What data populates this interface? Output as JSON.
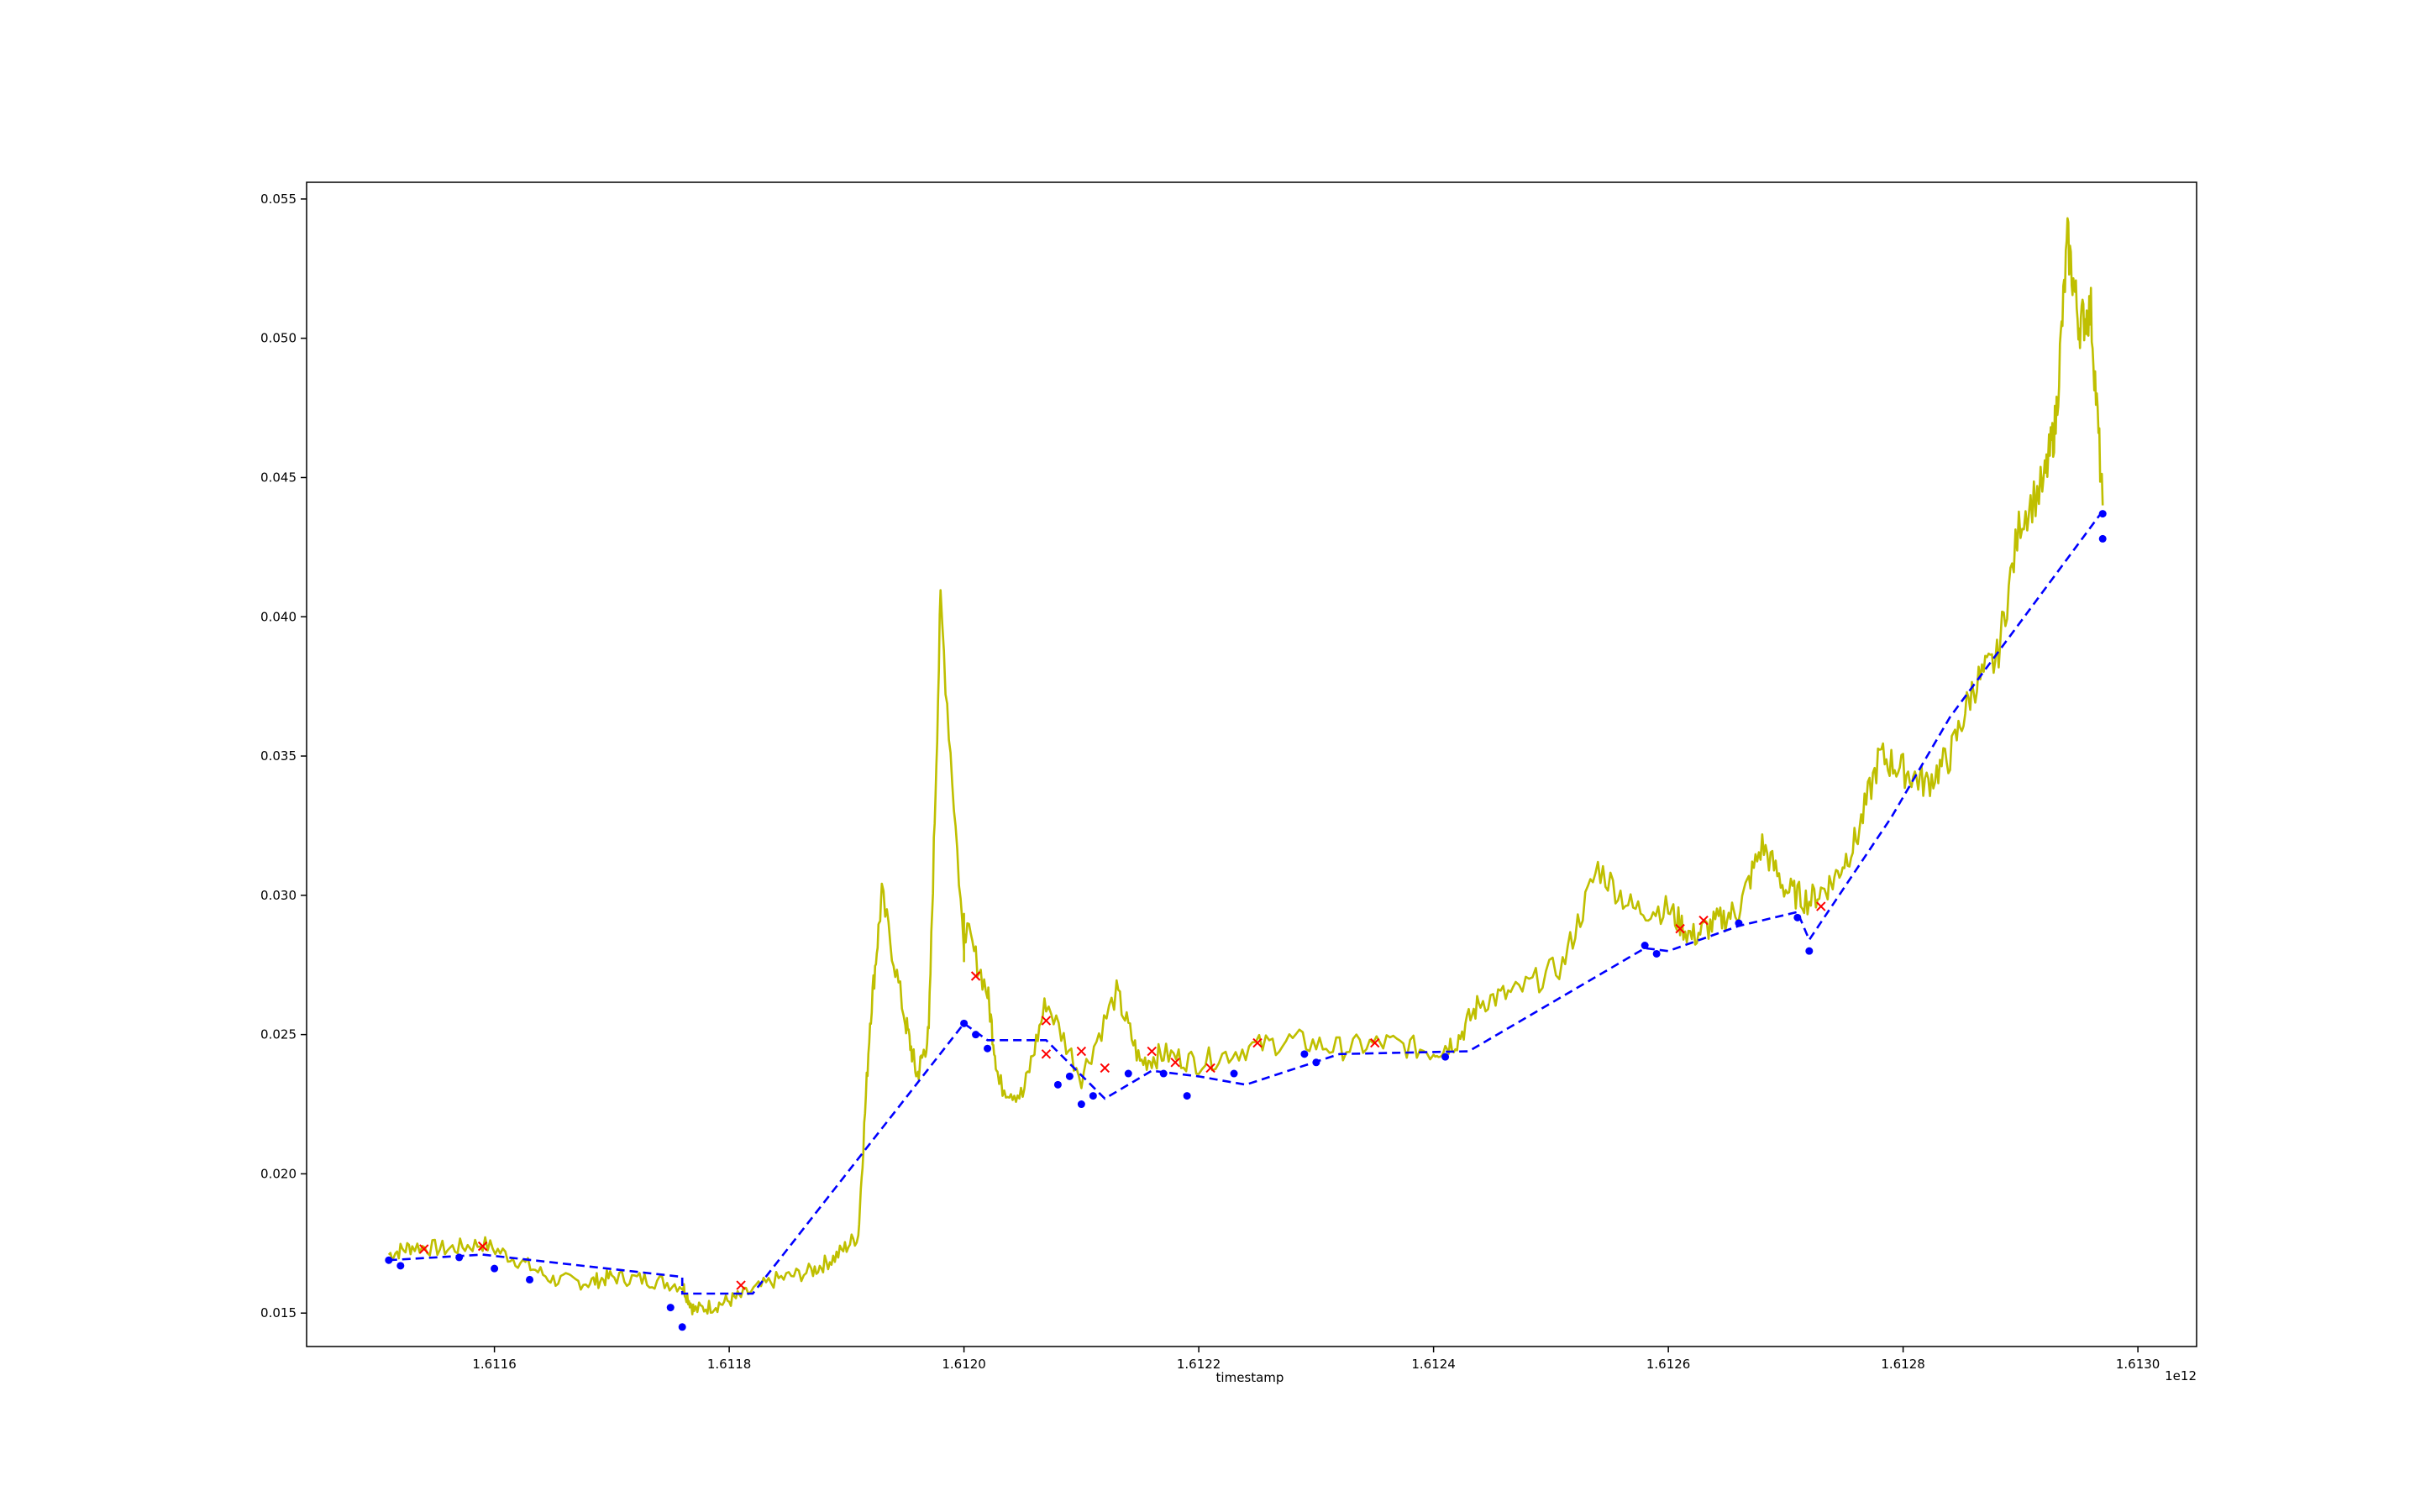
{
  "chart_data": {
    "type": "line",
    "xlabel": "timestamp",
    "ylabel": "",
    "title": "",
    "x_offset_label": "1e12",
    "xlim": [
      1.61144,
      1.61305
    ],
    "ylim": [
      0.0138,
      0.0556
    ],
    "x_ticks": [
      1.6116,
      1.6118,
      1.612,
      1.6122,
      1.6124,
      1.6126,
      1.6128,
      1.613
    ],
    "x_tick_labels": [
      "1.6116",
      "1.6118",
      "1.6120",
      "1.6122",
      "1.6124",
      "1.6126",
      "1.6128",
      "1.6130"
    ],
    "y_ticks": [
      0.015,
      0.02,
      0.025,
      0.03,
      0.035,
      0.04,
      0.045,
      0.05,
      0.055
    ],
    "y_tick_labels": [
      "0.015",
      "0.020",
      "0.025",
      "0.030",
      "0.035",
      "0.040",
      "0.045",
      "0.050",
      "0.055"
    ],
    "grid": false,
    "colors": {
      "price": "#bfbf00",
      "trend": "#0000ff",
      "buy": "#0000ff",
      "sell": "#ff0000"
    },
    "price_series": {
      "x": [
        1.61151,
        1.61153,
        1.61156,
        1.61159,
        1.61162,
        1.61165,
        1.61168,
        1.6117,
        1.61173,
        1.61176,
        1.61177,
        1.61179,
        1.61181,
        1.61184,
        1.61187,
        1.61189,
        1.61191,
        1.61192,
        1.61193,
        1.61195,
        1.61196,
        1.61197,
        1.61198,
        1.612,
        1.612,
        1.61202,
        1.61203,
        1.61205,
        1.61207,
        1.6121,
        1.61213,
        1.61215,
        1.61217,
        1.6122,
        1.61224,
        1.61228,
        1.61232,
        1.61236,
        1.6124,
        1.61242,
        1.61244,
        1.61247,
        1.61251,
        1.61254,
        1.61257,
        1.6126,
        1.61262,
        1.61264,
        1.61266,
        1.61268,
        1.6127,
        1.61272,
        1.61274,
        1.61276,
        1.61278,
        1.6128,
        1.61282,
        1.61284,
        1.61286,
        1.61288,
        1.6129,
        1.61292,
        1.61293,
        1.61294,
        1.61295,
        1.61296,
        1.61297
      ],
      "y": [
        0.0171,
        0.0174,
        0.0173,
        0.0175,
        0.0169,
        0.0162,
        0.0161,
        0.0163,
        0.0162,
        0.016,
        0.0151,
        0.0153,
        0.0156,
        0.0162,
        0.0165,
        0.017,
        0.0178,
        0.0255,
        0.03,
        0.0255,
        0.0235,
        0.025,
        0.0405,
        0.028,
        0.029,
        0.0265,
        0.0232,
        0.0228,
        0.0262,
        0.0235,
        0.0265,
        0.024,
        0.0243,
        0.024,
        0.0245,
        0.0248,
        0.0245,
        0.0247,
        0.0244,
        0.0248,
        0.0262,
        0.0265,
        0.0275,
        0.031,
        0.0295,
        0.0295,
        0.0285,
        0.029,
        0.0295,
        0.0318,
        0.0302,
        0.0298,
        0.0305,
        0.032,
        0.035,
        0.0345,
        0.034,
        0.035,
        0.0375,
        0.0385,
        0.0435,
        0.0448,
        0.047,
        0.0535,
        0.0505,
        0.051,
        0.044
      ]
    },
    "trend_series": {
      "x": [
        1.61151,
        1.61159,
        1.61176,
        1.61176,
        1.61182,
        1.612,
        1.61202,
        1.61207,
        1.61212,
        1.61216,
        1.6122,
        1.61224,
        1.61232,
        1.61243,
        1.61258,
        1.6126,
        1.61266,
        1.61271,
        1.61272,
        1.61279,
        1.61284,
        1.61297
      ],
      "y": [
        0.0169,
        0.0171,
        0.0163,
        0.0157,
        0.0157,
        0.0254,
        0.0248,
        0.0248,
        0.0227,
        0.0237,
        0.0235,
        0.0232,
        0.0243,
        0.0244,
        0.0281,
        0.028,
        0.0289,
        0.0294,
        0.0284,
        0.0328,
        0.0364,
        0.0438
      ]
    },
    "buy_points": {
      "x": [
        1.61151,
        1.61152,
        1.61157,
        1.6116,
        1.61163,
        1.61175,
        1.61176,
        1.612,
        1.61201,
        1.61202,
        1.61208,
        1.61209,
        1.6121,
        1.61211,
        1.61214,
        1.61217,
        1.61219,
        1.61223,
        1.61229,
        1.6123,
        1.61241,
        1.61258,
        1.61259,
        1.61266,
        1.61271,
        1.61272,
        1.61297,
        1.61297
      ],
      "y": [
        0.0169,
        0.0167,
        0.017,
        0.0166,
        0.0162,
        0.0152,
        0.0145,
        0.0254,
        0.025,
        0.0245,
        0.0232,
        0.0235,
        0.0225,
        0.0228,
        0.0236,
        0.0236,
        0.0228,
        0.0236,
        0.0243,
        0.024,
        0.0242,
        0.0282,
        0.0279,
        0.029,
        0.0292,
        0.028,
        0.0437,
        0.0428
      ]
    },
    "sell_points": {
      "x": [
        1.61154,
        1.61159,
        1.61181,
        1.61201,
        1.61207,
        1.61207,
        1.6121,
        1.61212,
        1.61216,
        1.61218,
        1.61221,
        1.61225,
        1.61235,
        1.61261,
        1.61263,
        1.61273
      ],
      "y": [
        0.0173,
        0.0174,
        0.016,
        0.0271,
        0.0255,
        0.0243,
        0.0244,
        0.0238,
        0.0244,
        0.024,
        0.0238,
        0.0247,
        0.0247,
        0.0288,
        0.0291,
        0.0296
      ]
    }
  }
}
